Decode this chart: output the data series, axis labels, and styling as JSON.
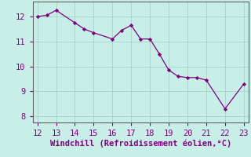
{
  "x": [
    12,
    12.5,
    13,
    14,
    14.5,
    15,
    16,
    16.5,
    17,
    17.5,
    18,
    18.5,
    19,
    19.5,
    20,
    20.5,
    21,
    22,
    23
  ],
  "y": [
    12.0,
    12.05,
    12.25,
    11.75,
    11.5,
    11.35,
    11.1,
    11.45,
    11.65,
    11.1,
    11.1,
    10.5,
    9.85,
    9.6,
    9.55,
    9.55,
    9.45,
    8.3,
    9.3
  ],
  "xlabel": "Windchill (Refroidissement éolien,°C)",
  "xlim": [
    11.75,
    23.25
  ],
  "ylim": [
    7.75,
    12.6
  ],
  "xticks": [
    12,
    13,
    14,
    15,
    16,
    17,
    18,
    19,
    20,
    21,
    22,
    23
  ],
  "yticks": [
    8,
    9,
    10,
    11,
    12
  ],
  "line_color": "#800080",
  "marker_color": "#800080",
  "bg_color": "#c8eee8",
  "grid_color": "#a8d8cc",
  "tick_color": "#800080",
  "label_color": "#800080",
  "spine_color": "#606060",
  "font_size": 7.5
}
